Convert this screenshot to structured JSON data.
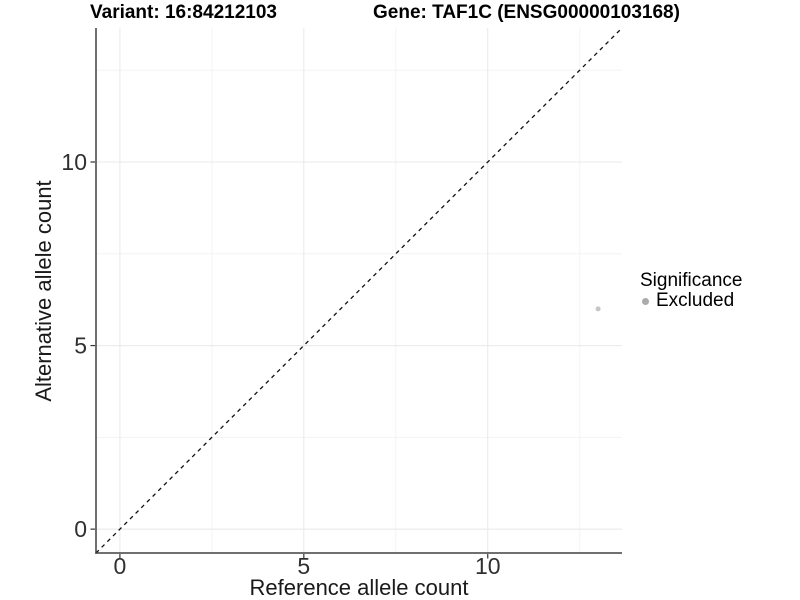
{
  "titles": {
    "variant": "Variant: 16:84212103",
    "gene": "Gene: TAF1C (ENSG00000103168)"
  },
  "chart_data": {
    "type": "scatter",
    "xlabel": "Reference allele count",
    "ylabel": "Alternative allele count",
    "xlim": [
      -0.65,
      13.65
    ],
    "ylim": [
      -0.65,
      13.65
    ],
    "x_ticks": [
      0,
      5,
      10
    ],
    "y_ticks": [
      0,
      5,
      10
    ],
    "x_minor_ticks": [
      2.5,
      7.5,
      12.5
    ],
    "y_minor_ticks": [
      2.5,
      7.5,
      12.5
    ],
    "grid": "major and minor gridlines, white panel background",
    "identity_line": {
      "style": "dashed",
      "slope": 1,
      "intercept": 0,
      "color": "#111111"
    },
    "series": [
      {
        "name": "Excluded",
        "marker": "circle",
        "color": "#c6c6c6",
        "points": [
          {
            "x": 13,
            "y": 6
          }
        ]
      }
    ],
    "legend": {
      "title": "Significance",
      "position": "right",
      "items": [
        {
          "label": "Excluded",
          "marker": "circle",
          "color": "#ababab"
        }
      ]
    }
  },
  "colors": {
    "background": "#ffffff",
    "axis_line": "#404040",
    "tick_mark": "#333333",
    "tick_label": "#303030",
    "grid_major": "#e8e8e8",
    "grid_minor": "#f3f3f3",
    "title_text": "#000000"
  }
}
